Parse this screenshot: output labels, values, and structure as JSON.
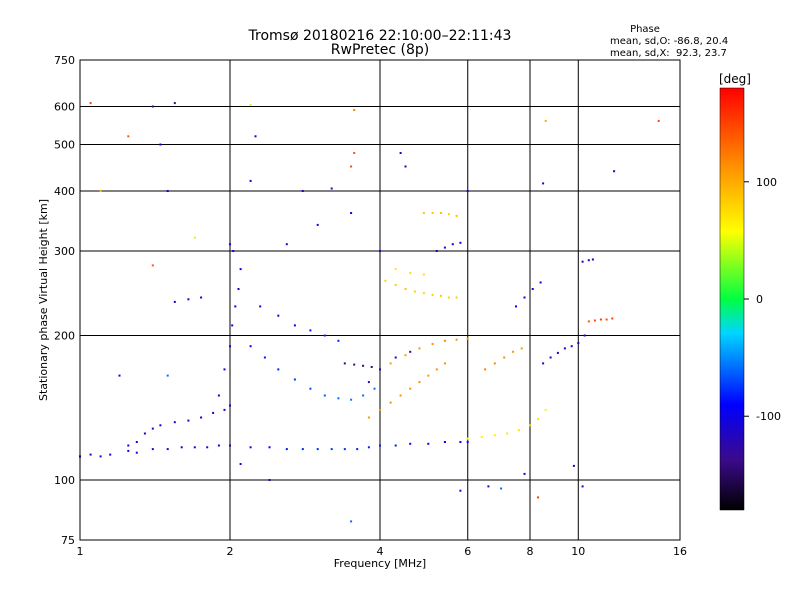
{
  "chart_data": {
    "type": "scatter",
    "title": "Tromsø 20180216 22:10:00–22:11:43",
    "subtitle": "RwPretec (8p)",
    "xlabel": "Frequency [MHz]",
    "ylabel": "Stationary phase Virtual Height [km]",
    "x_scale": "log",
    "y_scale": "log",
    "xlim": [
      1,
      16
    ],
    "ylim": [
      75,
      750
    ],
    "x_ticks": [
      1,
      2,
      4,
      6,
      8,
      10,
      16
    ],
    "x_tick_labels": [
      "1",
      "2",
      "4",
      "6",
      "8",
      "10",
      "16"
    ],
    "y_ticks": [
      75,
      100,
      200,
      300,
      400,
      500,
      600,
      750
    ],
    "y_tick_labels": [
      "75",
      "100",
      "200",
      "300",
      "400",
      "500",
      "600",
      "750"
    ],
    "grid": true,
    "phase_summary": {
      "heading": "Phase",
      "line_o": "mean, sd,O: -86.8, 20.4",
      "line_x": "mean, sd,X:  92.3, 23.7"
    },
    "colorbar": {
      "label": "[deg]",
      "range": [
        -180,
        180
      ],
      "ticks": [
        100,
        0,
        -100
      ],
      "tick_labels": [
        "100",
        "0",
        "-100"
      ],
      "colormap": "rainbow"
    },
    "series": [
      {
        "points": [
          [
            1.0,
            112,
            -110
          ],
          [
            1.05,
            113,
            -105
          ],
          [
            1.1,
            112,
            -112
          ],
          [
            1.15,
            113,
            -108
          ],
          [
            1.25,
            115,
            -110
          ],
          [
            1.3,
            114,
            -105
          ],
          [
            1.4,
            116,
            -108
          ],
          [
            1.5,
            116,
            -110
          ],
          [
            1.6,
            117,
            -106
          ],
          [
            1.7,
            117,
            -108
          ],
          [
            1.8,
            117,
            -110
          ],
          [
            1.9,
            118,
            -105
          ],
          [
            2.0,
            118,
            -107
          ],
          [
            2.2,
            117,
            -100
          ],
          [
            2.4,
            117,
            -90
          ],
          [
            2.6,
            116,
            -85
          ],
          [
            2.8,
            116,
            -80
          ],
          [
            3.0,
            116,
            -78
          ],
          [
            3.2,
            116,
            -75
          ],
          [
            3.4,
            116,
            -78
          ],
          [
            3.6,
            116,
            -80
          ],
          [
            3.8,
            117,
            -82
          ],
          [
            4.0,
            118,
            -80
          ],
          [
            4.3,
            118,
            -85
          ],
          [
            4.6,
            119,
            -88
          ],
          [
            5.0,
            119,
            -90
          ],
          [
            5.4,
            120,
            -92
          ],
          [
            5.8,
            120,
            -90
          ],
          [
            6.0,
            120,
            -88
          ]
        ]
      },
      {
        "points": [
          [
            1.25,
            118,
            -100
          ],
          [
            1.3,
            120,
            -105
          ],
          [
            1.35,
            125,
            -110
          ],
          [
            1.4,
            128,
            -108
          ],
          [
            1.45,
            130,
            -105
          ],
          [
            1.55,
            132,
            -110
          ],
          [
            1.65,
            133,
            -108
          ],
          [
            1.75,
            135,
            -105
          ],
          [
            1.85,
            138,
            -110
          ],
          [
            1.95,
            140,
            -108
          ],
          [
            2.0,
            143,
            -105
          ]
        ]
      },
      {
        "points": [
          [
            1.9,
            150,
            -100
          ],
          [
            1.95,
            170,
            -95
          ],
          [
            2.0,
            190,
            -105
          ],
          [
            2.02,
            210,
            -100
          ],
          [
            2.05,
            230,
            -98
          ],
          [
            2.08,
            250,
            -102
          ],
          [
            2.1,
            275,
            -95
          ],
          [
            2.03,
            300,
            -108
          ]
        ]
      },
      {
        "points": [
          [
            2.2,
            190,
            -90
          ],
          [
            2.35,
            180,
            -85
          ],
          [
            2.5,
            170,
            -80
          ],
          [
            2.7,
            162,
            -75
          ],
          [
            2.9,
            155,
            -70
          ],
          [
            3.1,
            150,
            -65
          ],
          [
            3.3,
            148,
            -60
          ],
          [
            3.5,
            147,
            -55
          ],
          [
            3.7,
            150,
            -58
          ],
          [
            3.9,
            155,
            -60
          ]
        ]
      },
      {
        "points": [
          [
            2.3,
            230,
            -100
          ],
          [
            2.5,
            220,
            -95
          ],
          [
            2.7,
            210,
            -90
          ],
          [
            2.9,
            205,
            -85
          ],
          [
            3.1,
            200,
            -80
          ],
          [
            3.3,
            195,
            -80
          ]
        ]
      },
      {
        "points": [
          [
            3.4,
            175,
            -140
          ],
          [
            3.55,
            174,
            -138
          ],
          [
            3.7,
            173,
            -142
          ],
          [
            3.85,
            172,
            -140
          ]
        ]
      },
      {
        "points": [
          [
            3.8,
            135,
            110
          ],
          [
            4.0,
            140,
            112
          ],
          [
            4.2,
            145,
            115
          ],
          [
            4.4,
            150,
            110
          ],
          [
            4.6,
            155,
            112
          ],
          [
            4.8,
            160,
            115
          ],
          [
            5.0,
            165,
            110
          ],
          [
            5.2,
            170,
            112
          ],
          [
            5.4,
            175,
            115
          ]
        ]
      },
      {
        "points": [
          [
            4.2,
            175,
            105
          ],
          [
            4.5,
            182,
            108
          ],
          [
            4.8,
            188,
            110
          ],
          [
            5.1,
            192,
            112
          ],
          [
            5.4,
            195,
            115
          ],
          [
            5.7,
            196,
            112
          ],
          [
            6.0,
            197,
            110
          ]
        ]
      },
      {
        "points": [
          [
            3.8,
            160,
            -120
          ],
          [
            4.0,
            170,
            -115
          ],
          [
            4.3,
            180,
            -118
          ],
          [
            4.6,
            185,
            -120
          ]
        ]
      },
      {
        "points": [
          [
            4.1,
            260,
            80
          ],
          [
            4.3,
            255,
            82
          ],
          [
            4.5,
            250,
            85
          ],
          [
            4.7,
            247,
            80
          ],
          [
            4.9,
            245,
            78
          ],
          [
            5.1,
            243,
            82
          ],
          [
            5.3,
            242,
            85
          ],
          [
            5.5,
            240,
            80
          ],
          [
            5.7,
            240,
            82
          ]
        ]
      },
      {
        "points": [
          [
            4.3,
            275,
            70
          ],
          [
            4.6,
            270,
            75
          ],
          [
            4.9,
            268,
            72
          ]
        ]
      },
      {
        "points": [
          [
            4.9,
            360,
            85
          ],
          [
            5.1,
            360,
            88
          ],
          [
            5.3,
            360,
            90
          ],
          [
            5.5,
            358,
            85
          ],
          [
            5.7,
            355,
            88
          ]
        ]
      },
      {
        "points": [
          [
            5.2,
            300,
            -110
          ],
          [
            5.4,
            305,
            -112
          ],
          [
            5.6,
            310,
            -108
          ],
          [
            5.8,
            312,
            -110
          ]
        ]
      },
      {
        "points": [
          [
            6.5,
            170,
            120
          ],
          [
            6.8,
            175,
            118
          ],
          [
            7.1,
            180,
            115
          ],
          [
            7.4,
            185,
            112
          ],
          [
            7.7,
            188,
            110
          ]
        ]
      },
      {
        "points": [
          [
            6.0,
            122,
            60
          ],
          [
            6.4,
            123,
            65
          ],
          [
            6.8,
            124,
            70
          ],
          [
            7.2,
            125,
            72
          ],
          [
            7.6,
            127,
            75
          ],
          [
            8.0,
            130,
            78
          ],
          [
            8.3,
            134,
            70
          ],
          [
            8.6,
            140,
            65
          ]
        ]
      },
      {
        "points": [
          [
            7.5,
            230,
            -90
          ],
          [
            7.8,
            240,
            -95
          ],
          [
            8.1,
            250,
            -100
          ],
          [
            8.4,
            258,
            -95
          ]
        ]
      },
      {
        "points": [
          [
            8.5,
            175,
            -110
          ],
          [
            8.8,
            180,
            -112
          ],
          [
            9.1,
            184,
            -108
          ],
          [
            9.4,
            188,
            -110
          ],
          [
            9.7,
            190,
            -112
          ],
          [
            10.0,
            193,
            -110
          ],
          [
            10.3,
            200,
            -108
          ]
        ]
      },
      {
        "points": [
          [
            10.5,
            214,
            140
          ],
          [
            10.8,
            215,
            145
          ],
          [
            11.1,
            216,
            150
          ],
          [
            11.4,
            216,
            145
          ],
          [
            11.7,
            217,
            148
          ]
        ]
      },
      {
        "points": [
          [
            10.2,
            285,
            -105
          ],
          [
            10.5,
            287,
            -108
          ],
          [
            10.7,
            288,
            -110
          ]
        ]
      },
      {
        "points": [
          [
            1.55,
            235,
            -100
          ],
          [
            1.65,
            238,
            -105
          ],
          [
            1.75,
            240,
            -108
          ]
        ]
      },
      {
        "points": [
          [
            1.05,
            610,
            150
          ],
          [
            1.4,
            600,
            -120
          ],
          [
            1.55,
            610,
            -140
          ],
          [
            1.25,
            520,
            140
          ],
          [
            1.45,
            500,
            -100
          ],
          [
            2.2,
            605,
            50
          ],
          [
            2.25,
            520,
            -100
          ],
          [
            2.2,
            420,
            -110
          ],
          [
            2.8,
            400,
            -110
          ],
          [
            3.2,
            405,
            -115
          ],
          [
            3.5,
            360,
            -100
          ],
          [
            3.55,
            590,
            120
          ],
          [
            3.55,
            480,
            140
          ],
          [
            3.5,
            450,
            145
          ],
          [
            4.4,
            480,
            -110
          ],
          [
            4.5,
            450,
            -115
          ],
          [
            6.0,
            400,
            -110
          ],
          [
            8.6,
            560,
            100
          ],
          [
            8.5,
            415,
            -110
          ],
          [
            11.8,
            440,
            -110
          ],
          [
            14.5,
            560,
            150
          ],
          [
            1.1,
            400,
            90
          ],
          [
            1.4,
            280,
            140
          ],
          [
            1.5,
            400,
            -100
          ],
          [
            1.7,
            320,
            50
          ],
          [
            2.0,
            310,
            -110
          ],
          [
            2.6,
            310,
            -110
          ],
          [
            3.0,
            340,
            -110
          ],
          [
            4.0,
            300,
            -115
          ],
          [
            3.5,
            82,
            -60
          ],
          [
            2.1,
            108,
            -110
          ],
          [
            2.4,
            100,
            -110
          ],
          [
            5.8,
            95,
            -110
          ],
          [
            6.6,
            97,
            -110
          ],
          [
            7.0,
            96,
            -60
          ],
          [
            7.8,
            103,
            -110
          ],
          [
            8.3,
            92,
            150
          ],
          [
            9.8,
            107,
            -110
          ],
          [
            10.2,
            97,
            -110
          ],
          [
            1.2,
            165,
            -110
          ],
          [
            1.5,
            165,
            -60
          ]
        ]
      }
    ]
  }
}
